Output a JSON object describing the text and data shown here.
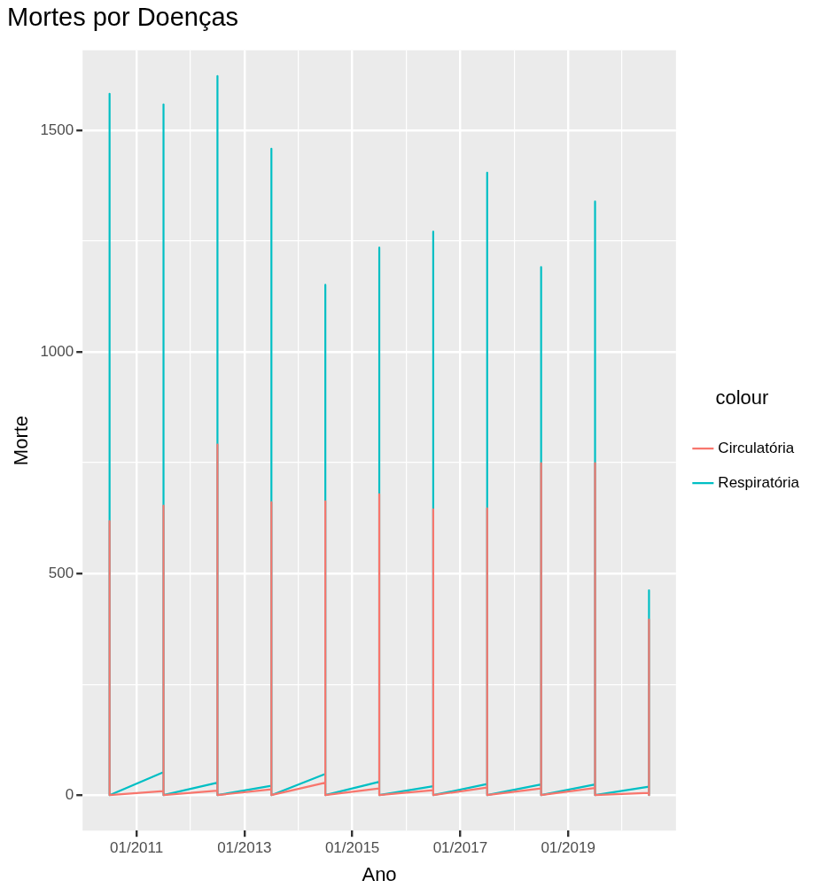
{
  "chart_data": {
    "type": "line",
    "title": "Mortes por Doenças",
    "xlabel": "Ano",
    "ylabel": "Morte",
    "legend_title": "colour",
    "legend": "right",
    "grid": true,
    "xlim": [
      "2010-01",
      "2021-01"
    ],
    "ylim": [
      -80,
      1680
    ],
    "xticks": [
      {
        "value": "2011-01",
        "label": "01/2011"
      },
      {
        "value": "2012-01",
        "label": null
      },
      {
        "value": "2013-01",
        "label": "01/2013"
      },
      {
        "value": "2014-01",
        "label": null
      },
      {
        "value": "2015-01",
        "label": "01/2015"
      },
      {
        "value": "2016-01",
        "label": null
      },
      {
        "value": "2017-01",
        "label": "01/2017"
      },
      {
        "value": "2018-01",
        "label": null
      },
      {
        "value": "2019-01",
        "label": "01/2019"
      },
      {
        "value": "2020-01",
        "label": null
      }
    ],
    "yticks": [
      0,
      {
        "value": 250,
        "label": null
      },
      500,
      {
        "value": 750,
        "label": null
      },
      1000,
      {
        "value": 1250,
        "label": null
      },
      1500
    ],
    "series": [
      {
        "name": "Circulatória",
        "color": "#f8766d",
        "x": [
          "2010-07",
          "2010-07",
          "2010-07",
          "2011-07",
          "2011-07",
          "2011-07",
          "2012-07",
          "2012-07",
          "2012-07",
          "2013-07",
          "2013-07",
          "2013-07",
          "2014-07",
          "2014-07",
          "2014-07",
          "2015-07",
          "2015-07",
          "2015-07",
          "2016-07",
          "2016-07",
          "2016-07",
          "2017-07",
          "2017-07",
          "2017-07",
          "2018-07",
          "2018-07",
          "2018-07",
          "2019-07",
          "2019-07",
          "2019-07",
          "2020-07",
          "2020-07",
          "2020-07"
        ],
        "values": [
          0,
          618,
          0,
          9,
          653,
          0,
          10,
          791,
          0,
          13,
          661,
          0,
          28,
          663,
          0,
          15,
          679,
          0,
          11,
          645,
          0,
          17,
          647,
          0,
          15,
          749,
          0,
          16,
          749,
          0,
          5,
          396,
          0
        ]
      },
      {
        "name": "Respiratória",
        "color": "#00bfc4",
        "x": [
          "2010-07",
          "2010-07",
          "2010-07",
          "2011-07",
          "2011-07",
          "2011-07",
          "2012-07",
          "2012-07",
          "2012-07",
          "2013-07",
          "2013-07",
          "2013-07",
          "2014-07",
          "2014-07",
          "2014-07",
          "2015-07",
          "2015-07",
          "2015-07",
          "2016-07",
          "2016-07",
          "2016-07",
          "2017-07",
          "2017-07",
          "2017-07",
          "2018-07",
          "2018-07",
          "2018-07",
          "2019-07",
          "2019-07",
          "2019-07",
          "2020-07",
          "2020-07",
          "2020-07"
        ],
        "values": [
          0,
          1582,
          0,
          52,
          1558,
          0,
          28,
          1622,
          0,
          21,
          1458,
          0,
          48,
          1151,
          0,
          30,
          1235,
          0,
          20,
          1271,
          0,
          25,
          1404,
          0,
          24,
          1191,
          0,
          24,
          1339,
          0,
          19,
          462,
          0
        ]
      }
    ]
  }
}
